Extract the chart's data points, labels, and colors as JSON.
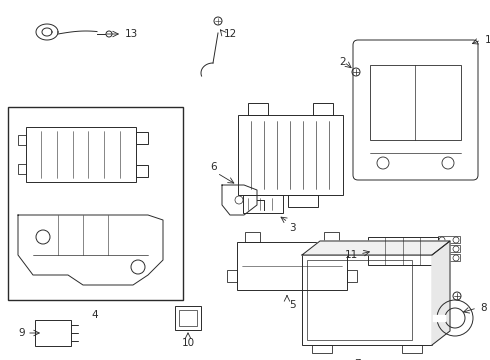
{
  "bg_color": "#ffffff",
  "lc": "#2a2a2a",
  "lw": 0.7,
  "figsize": [
    4.9,
    3.6
  ],
  "dpi": 100
}
